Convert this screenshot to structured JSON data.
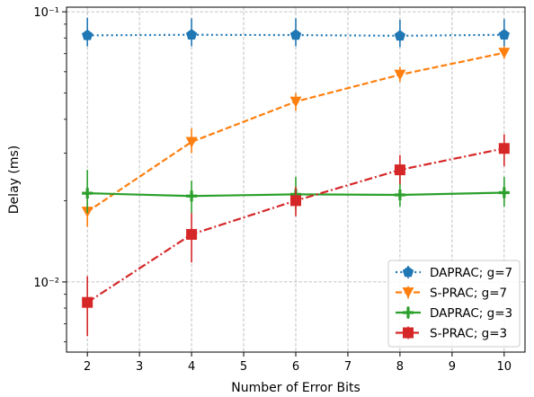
{
  "chart_data": {
    "type": "line",
    "title": "",
    "xlabel": "Number of Error Bits",
    "ylabel": "Delay (ms)",
    "xscale": "linear",
    "yscale": "log",
    "xlim": [
      1.6,
      10.4
    ],
    "ylim": [
      0.0055,
      0.104
    ],
    "xticks": [
      2,
      3,
      4,
      5,
      6,
      7,
      8,
      9,
      10
    ],
    "xtick_labels": [
      "2",
      "3",
      "4",
      "5",
      "6",
      "7",
      "8",
      "9",
      "10"
    ],
    "yticks": [
      0.01,
      0.1
    ],
    "ytick_labels": [
      "10⁻²",
      "10⁻¹"
    ],
    "grid": true,
    "legend_position": "lower-right",
    "x": [
      2,
      4,
      6,
      8,
      10
    ],
    "series": [
      {
        "name": "DAPRAC; g=7",
        "color": "#1f77b4",
        "linestyle": "dotted",
        "marker": "pentagon",
        "values": [
          0.0818,
          0.0822,
          0.082,
          0.0815,
          0.0822
        ],
        "err_low": [
          0.0745,
          0.0745,
          0.0745,
          0.074,
          0.0745
        ],
        "err_high": [
          0.095,
          0.0945,
          0.0945,
          0.0935,
          0.094
        ]
      },
      {
        "name": "S-PRAC; g=7",
        "color": "#ff7f0e",
        "linestyle": "dashed",
        "marker": "triangle-down",
        "values": [
          0.0182,
          0.033,
          0.0465,
          0.0585,
          0.0705
        ],
        "err_low": [
          0.016,
          0.03,
          0.043,
          0.055,
          0.067
        ],
        "err_high": [
          0.02,
          0.037,
          0.05,
          0.0625,
          0.0745
        ]
      },
      {
        "name": "DAPRAC; g=3",
        "color": "#2ca02c",
        "linestyle": "solid",
        "marker": "plus",
        "values": [
          0.0213,
          0.0208,
          0.0211,
          0.021,
          0.0214
        ],
        "err_low": [
          0.018,
          0.018,
          0.0185,
          0.019,
          0.019
        ],
        "err_high": [
          0.026,
          0.0237,
          0.0245,
          0.025,
          0.0245
        ]
      },
      {
        "name": "S-PRAC; g=3",
        "color": "#d62728",
        "linestyle": "dashdot",
        "marker": "square",
        "values": [
          0.0084,
          0.015,
          0.02,
          0.026,
          0.0312
        ],
        "err_low": [
          0.0063,
          0.0118,
          0.0175,
          0.023,
          0.0268
        ],
        "err_high": [
          0.0105,
          0.018,
          0.0225,
          0.0295,
          0.0352
        ]
      }
    ]
  }
}
